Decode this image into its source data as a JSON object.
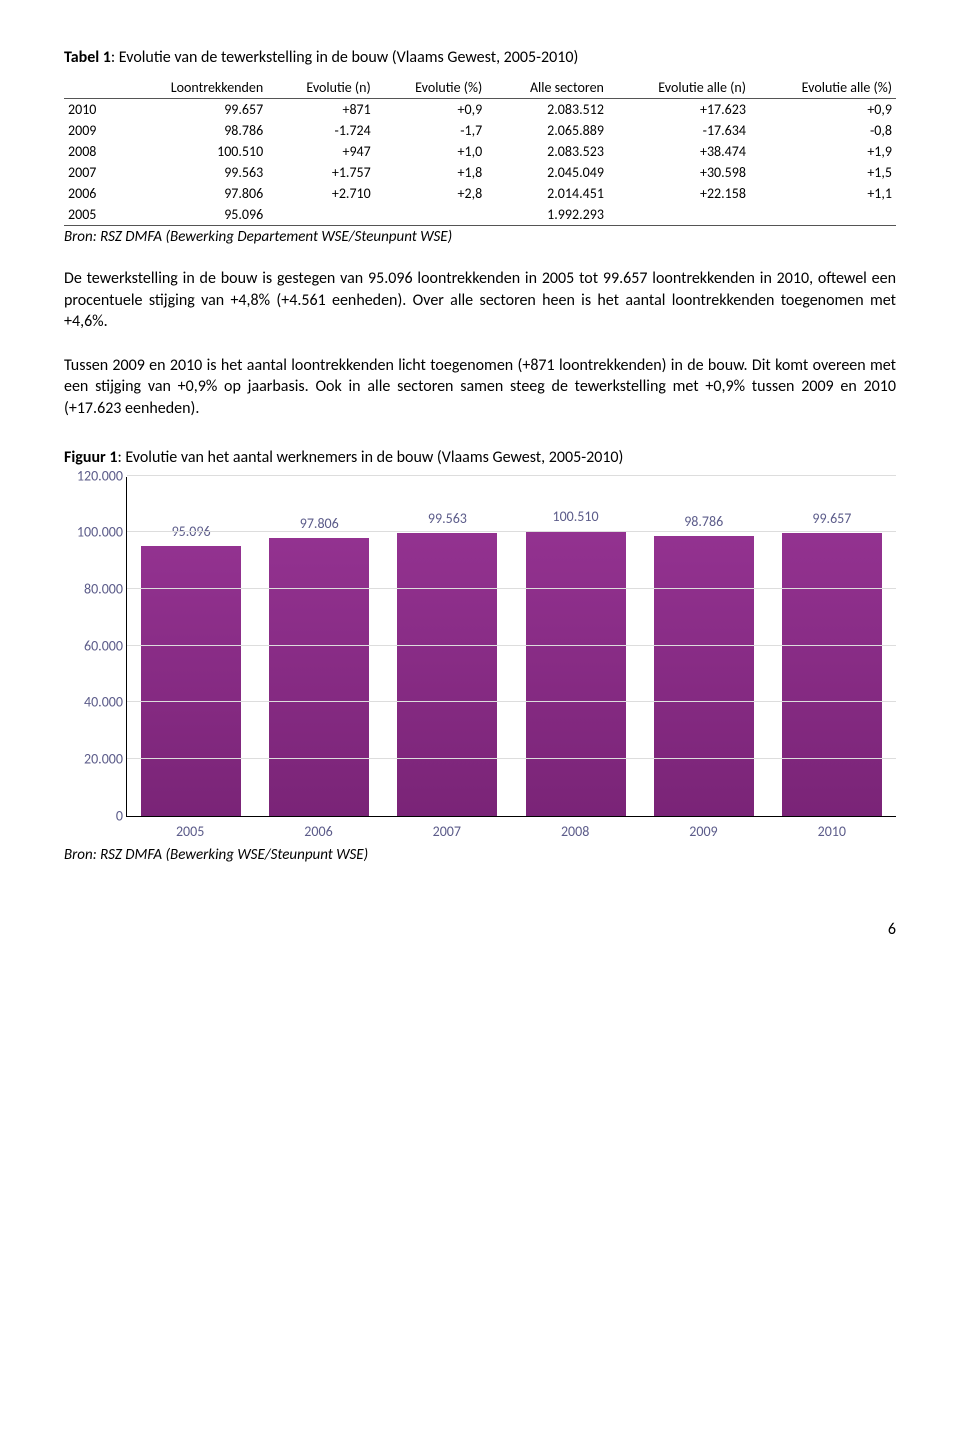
{
  "table": {
    "title_bold": "Tabel 1",
    "title_rest": ": Evolutie van de tewerkstelling in de bouw (Vlaams Gewest, 2005-2010)",
    "headers": [
      "",
      "Loontrekkenden",
      "Evolutie (n)",
      "Evolutie (%)",
      "Alle sectoren",
      "Evolutie alle (n)",
      "Evolutie alle (%)"
    ],
    "rows": [
      [
        "2010",
        "99.657",
        "+871",
        "+0,9",
        "2.083.512",
        "+17.623",
        "+0,9"
      ],
      [
        "2009",
        "98.786",
        "-1.724",
        "-1,7",
        "2.065.889",
        "-17.634",
        "-0,8"
      ],
      [
        "2008",
        "100.510",
        "+947",
        "+1,0",
        "2.083.523",
        "+38.474",
        "+1,9"
      ],
      [
        "2007",
        "99.563",
        "+1.757",
        "+1,8",
        "2.045.049",
        "+30.598",
        "+1,5"
      ],
      [
        "2006",
        "97.806",
        "+2.710",
        "+2,8",
        "2.014.451",
        "+22.158",
        "+1,1"
      ],
      [
        "2005",
        "95.096",
        "",
        "",
        "1.992.293",
        "",
        ""
      ]
    ],
    "bron": "Bron: RSZ DMFA (Bewerking Departement WSE/Steunpunt WSE)"
  },
  "para1": "De tewerkstelling in de bouw is gestegen van 95.096 loontrekkenden in 2005 tot 99.657 loontrekkenden in 2010, oftewel een procentuele stijging van +4,8% (+4.561 eenheden). Over alle sectoren heen is het aantal loontrekkenden toegenomen met +4,6%.",
  "para2": "Tussen 2009 en 2010 is het aantal loontrekkenden licht toegenomen (+871 loontrekkenden) in de bouw. Dit komt overeen met een stijging van +0,9% op jaarbasis. Ook in alle sectoren samen steeg de tewerkstelling met +0,9% tussen 2009 en 2010 (+17.623 eenheden).",
  "figure": {
    "title_bold": "Figuur 1",
    "title_rest": ": Evolutie van het aantal werknemers in de bouw (Vlaams Gewest, 2005-2010)",
    "type": "bar",
    "categories": [
      "2005",
      "2006",
      "2007",
      "2008",
      "2009",
      "2010"
    ],
    "values": [
      95096,
      97806,
      99563,
      100510,
      98786,
      99657
    ],
    "value_labels": [
      "95.096",
      "97.806",
      "99.563",
      "100.510",
      "98.786",
      "99.657"
    ],
    "bar_color": "#7a2477",
    "ylim": [
      0,
      120000
    ],
    "yticks": [
      0,
      20000,
      40000,
      60000,
      80000,
      100000,
      120000
    ],
    "ytick_labels": [
      "0",
      "20.000",
      "40.000",
      "60.000",
      "80.000",
      "100.000",
      "120.000"
    ],
    "axis_label_color": "#5c5c8a",
    "grid_color": "#dddddd",
    "background_color": "#ffffff",
    "bron": "Bron: RSZ DMFA (Bewerking WSE/Steunpunt WSE)"
  },
  "page_number": "6"
}
